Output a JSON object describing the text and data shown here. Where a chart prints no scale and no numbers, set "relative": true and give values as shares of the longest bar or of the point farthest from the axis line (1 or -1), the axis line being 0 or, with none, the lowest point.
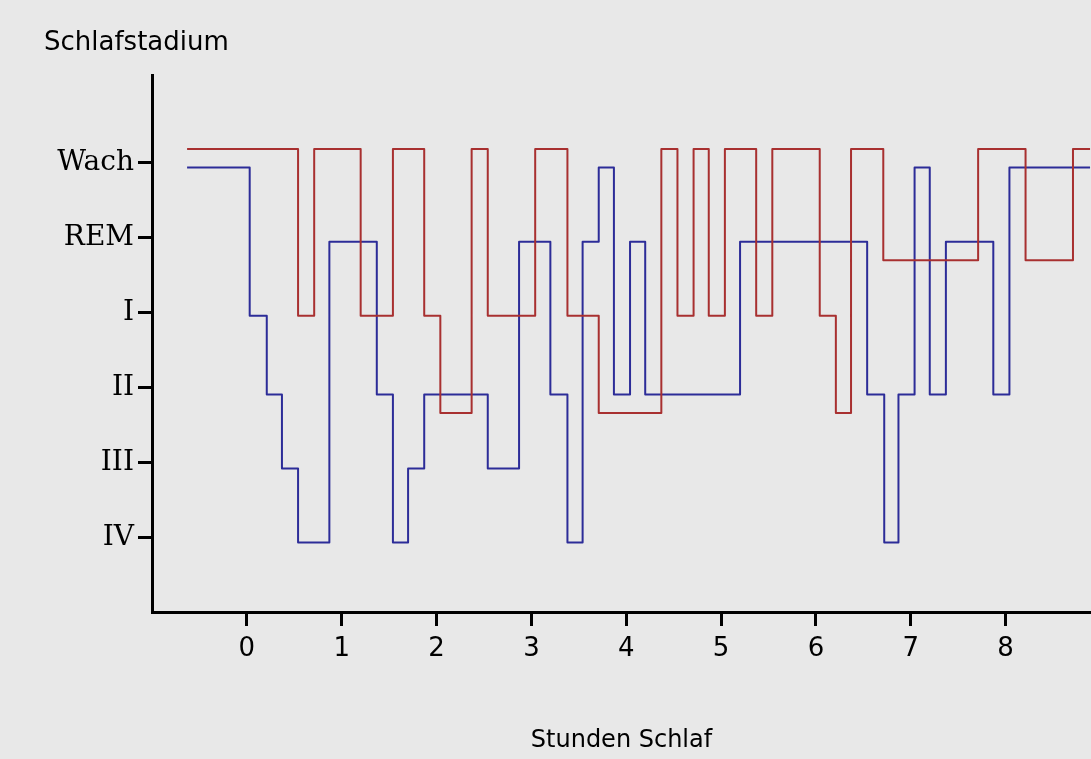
{
  "chart_data": {
    "type": "step",
    "xlabel": "Stunden Schlaf",
    "ylabel": "Schlafstadium",
    "relative": true,
    "xlim": [
      -1,
      8.9
    ],
    "xticks": [
      0,
      1,
      2,
      3,
      4,
      5,
      6,
      7,
      8
    ],
    "y_categories": [
      "Wach",
      "REM",
      "I",
      "II",
      "III",
      "IV"
    ],
    "grid": false,
    "legend": false,
    "marker": "none",
    "line_style": "solid",
    "series": [
      {
        "color": "#a83030",
        "x": [
          -0.63,
          0.54,
          0.71,
          1.2,
          1.54,
          1.87,
          2.04,
          2.37,
          2.54,
          3.04,
          3.38,
          3.71,
          4.37,
          4.54,
          4.71,
          4.87,
          5.04,
          5.37,
          5.54,
          6.04,
          6.21,
          6.37,
          6.71,
          7.71,
          8.21,
          8.71,
          8.89
        ],
        "values": [
          1,
          0.64,
          1,
          0.64,
          1,
          0.64,
          0.43,
          1,
          0.64,
          1,
          0.64,
          0.43,
          1,
          0.64,
          1,
          0.64,
          1,
          0.64,
          1,
          0.64,
          0.43,
          1,
          0.76,
          1,
          0.76,
          1,
          1
        ]
      },
      {
        "color": "#2c2c98",
        "x": [
          -0.63,
          0.03,
          0.21,
          0.37,
          0.54,
          0.87,
          1.37,
          1.54,
          1.7,
          1.87,
          2.54,
          2.87,
          3.2,
          3.38,
          3.54,
          3.71,
          3.87,
          4.04,
          4.2,
          5.2,
          6.54,
          6.72,
          6.87,
          7.04,
          7.2,
          7.37,
          7.87,
          8.04,
          8.89
        ],
        "values": [
          0.96,
          0.64,
          0.47,
          0.31,
          0.15,
          0.8,
          0.47,
          0.15,
          0.31,
          0.47,
          0.31,
          0.8,
          0.47,
          0.15,
          0.8,
          0.96,
          0.47,
          0.8,
          0.47,
          0.8,
          0.47,
          0.15,
          0.47,
          0.96,
          0.47,
          0.8,
          0.47,
          0.96,
          0.96
        ]
      }
    ]
  }
}
